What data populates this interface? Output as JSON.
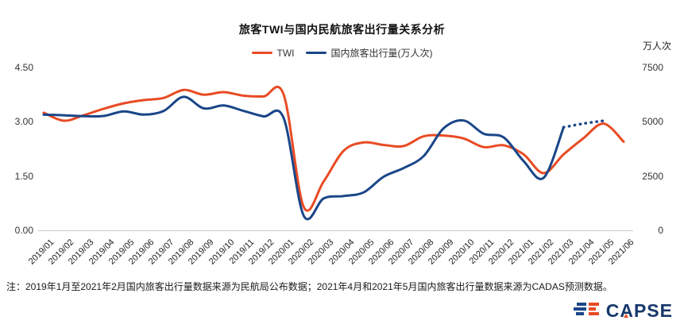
{
  "title": "旅客TWI与国内民航旅客出行量关系分析",
  "legend": [
    {
      "label": "TWI",
      "color": "#e84b23"
    },
    {
      "label": "国内旅客出行量(万人次)",
      "color": "#1a4688"
    }
  ],
  "note": "注：2019年1月至2021年2月国内旅客出行量数据来源为民航局公布数据；2021年4月和2021年5月国内旅客出行量数据来源为CADAS预测数据。",
  "logo": {
    "text": "CAPSE"
  },
  "colors": {
    "twi": "#e84b23",
    "volume": "#1a4688",
    "axis_line": "#c6c6c6",
    "logo_navy": "#16386b"
  },
  "chart_data": {
    "type": "line",
    "x": [
      "2019/01",
      "2019/02",
      "2019/03",
      "2019/04",
      "2019/05",
      "2019/06",
      "2019/07",
      "2019/08",
      "2019/09",
      "2019/10",
      "2019/11",
      "2019/12",
      "2020/01",
      "2020/02",
      "2020/03",
      "2020/04",
      "2020/05",
      "2020/06",
      "2020/07",
      "2020/08",
      "2020/09",
      "2020/10",
      "2020/11",
      "2020/12",
      "2021/01",
      "2021/02",
      "2021/03",
      "2021/04",
      "2021/05",
      "2021/06"
    ],
    "series": [
      {
        "name": "TWI",
        "axis": "left",
        "color": "#e84b23",
        "style": "solid",
        "values": [
          3.25,
          3.03,
          3.18,
          3.36,
          3.51,
          3.6,
          3.66,
          3.88,
          3.75,
          3.82,
          3.72,
          3.7,
          3.75,
          0.65,
          1.35,
          2.2,
          2.43,
          2.36,
          2.33,
          2.6,
          2.62,
          2.54,
          2.3,
          2.35,
          2.1,
          1.58,
          2.1,
          2.55,
          2.95,
          2.45
        ]
      },
      {
        "name": "国内旅客出行量(万人次)",
        "axis": "right",
        "color": "#1a4688",
        "style": "solid",
        "values": [
          5330,
          5300,
          5260,
          5270,
          5480,
          5330,
          5500,
          6150,
          5620,
          5750,
          5500,
          5250,
          5170,
          680,
          1470,
          1580,
          1750,
          2470,
          2870,
          3420,
          4700,
          5060,
          4450,
          4280,
          3190,
          2420,
          4750,
          null,
          null,
          null
        ]
      },
      {
        "name": "国内旅客出行量-CADAS预测",
        "axis": "right",
        "color": "#1a4688",
        "style": "dotted",
        "forecast": true,
        "values": [
          null,
          null,
          null,
          null,
          null,
          null,
          null,
          null,
          null,
          null,
          null,
          null,
          null,
          null,
          null,
          null,
          null,
          null,
          null,
          null,
          null,
          null,
          null,
          null,
          null,
          null,
          4750,
          4920,
          5050,
          null
        ]
      }
    ],
    "left_axis": {
      "ticks": [
        "4.50",
        "3.00",
        "1.50",
        "0.00"
      ],
      "min": 0,
      "max": 4.5
    },
    "right_axis": {
      "ticks": [
        "7500",
        "5000",
        "2500",
        "0"
      ],
      "min": 0,
      "max": 7500,
      "label": "万人次"
    },
    "grid": false,
    "legend_position": "top"
  }
}
